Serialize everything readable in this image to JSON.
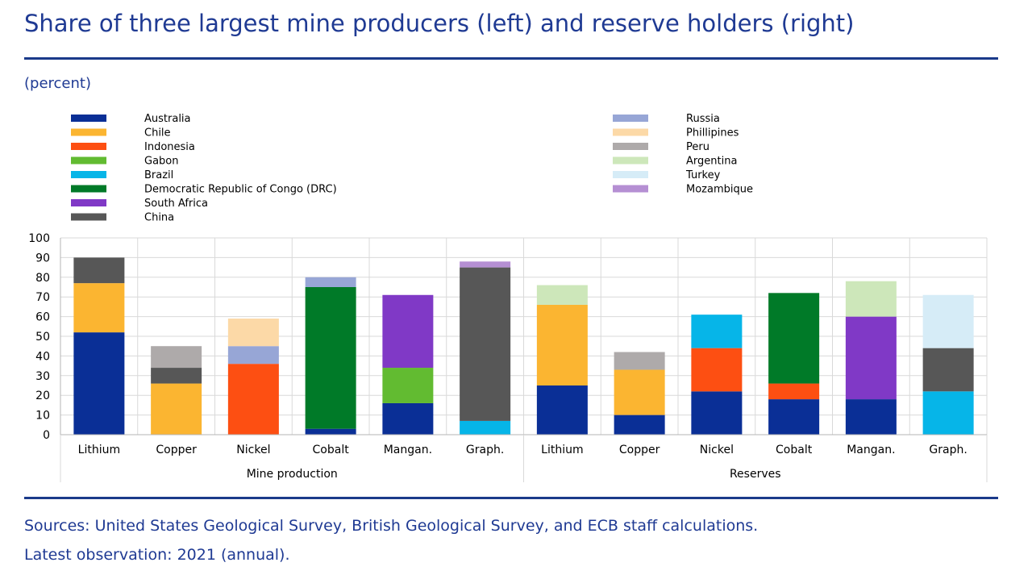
{
  "title": "Share of three largest mine producers (left) and reserve holders (right)",
  "unit_label": "(percent)",
  "notes": {
    "sources": "Sources: United States Geological Survey, British Geological Survey, and ECB staff calculations.",
    "latest": "Latest observation: 2021 (annual)."
  },
  "colors": {
    "Australia": "#0a2f96",
    "Chile": "#fbb531",
    "Indonesia": "#fd4f12",
    "Gabon": "#62bb31",
    "Brazil": "#06b5e8",
    "Democratic Republic of Congo (DRC)": "#007a28",
    "South Africa": "#8039c6",
    "China": "#575757",
    "Russia": "#97a6d6",
    "Phillipines": "#fcd9a7",
    "Peru": "#aeaaaa",
    "Argentina": "#cde7ba",
    "Turkey": "#d6ecf7",
    "Mozambique": "#b58fd3"
  },
  "chart_data": {
    "type": "bar",
    "stacked": true,
    "ylabel": "(percent)",
    "ylim": [
      0,
      100
    ],
    "yticks": [
      0,
      10,
      20,
      30,
      40,
      50,
      60,
      70,
      80,
      90,
      100
    ],
    "grid": true,
    "legend_columns": [
      [
        "Australia",
        "Chile",
        "Indonesia",
        "Gabon",
        "Brazil",
        "Democratic Republic of Congo (DRC)",
        "South Africa",
        "China"
      ],
      [
        "Russia",
        "Phillipines",
        "Peru",
        "Argentina",
        "Turkey",
        "Mozambique"
      ]
    ],
    "groups": [
      {
        "label": "Mine production",
        "categories": [
          "Lithium",
          "Copper",
          "Nickel",
          "Cobalt",
          "Mangan.",
          "Graph."
        ]
      },
      {
        "label": "Reserves",
        "categories": [
          "Lithium",
          "Copper",
          "Nickel",
          "Cobalt",
          "Mangan.",
          "Graph."
        ]
      }
    ],
    "bars": [
      {
        "group": "Mine production",
        "category": "Lithium",
        "segments": [
          {
            "series": "Australia",
            "value": 52
          },
          {
            "series": "Chile",
            "value": 25
          },
          {
            "series": "China",
            "value": 13
          }
        ]
      },
      {
        "group": "Mine production",
        "category": "Copper",
        "segments": [
          {
            "series": "Chile",
            "value": 26
          },
          {
            "series": "China",
            "value": 8
          },
          {
            "series": "Peru",
            "value": 11
          }
        ]
      },
      {
        "group": "Mine production",
        "category": "Nickel",
        "segments": [
          {
            "series": "Indonesia",
            "value": 36
          },
          {
            "series": "Russia",
            "value": 9
          },
          {
            "series": "Phillipines",
            "value": 14
          }
        ]
      },
      {
        "group": "Mine production",
        "category": "Cobalt",
        "segments": [
          {
            "series": "Australia",
            "value": 3
          },
          {
            "series": "Democratic Republic of Congo (DRC)",
            "value": 72
          },
          {
            "series": "Russia",
            "value": 5
          }
        ]
      },
      {
        "group": "Mine production",
        "category": "Mangan.",
        "segments": [
          {
            "series": "Australia",
            "value": 16
          },
          {
            "series": "Gabon",
            "value": 18
          },
          {
            "series": "South Africa",
            "value": 37
          }
        ]
      },
      {
        "group": "Mine production",
        "category": "Graph.",
        "segments": [
          {
            "series": "Brazil",
            "value": 7
          },
          {
            "series": "China",
            "value": 78
          },
          {
            "series": "Mozambique",
            "value": 3
          }
        ]
      },
      {
        "group": "Reserves",
        "category": "Lithium",
        "segments": [
          {
            "series": "Australia",
            "value": 25
          },
          {
            "series": "Chile",
            "value": 41
          },
          {
            "series": "Argentina",
            "value": 10
          }
        ]
      },
      {
        "group": "Reserves",
        "category": "Copper",
        "segments": [
          {
            "series": "Australia",
            "value": 10
          },
          {
            "series": "Chile",
            "value": 23
          },
          {
            "series": "Peru",
            "value": 9
          }
        ]
      },
      {
        "group": "Reserves",
        "category": "Nickel",
        "segments": [
          {
            "series": "Australia",
            "value": 22
          },
          {
            "series": "Indonesia",
            "value": 22
          },
          {
            "series": "Brazil",
            "value": 17
          }
        ]
      },
      {
        "group": "Reserves",
        "category": "Cobalt",
        "segments": [
          {
            "series": "Australia",
            "value": 18
          },
          {
            "series": "Indonesia",
            "value": 8
          },
          {
            "series": "Democratic Republic of Congo (DRC)",
            "value": 46
          }
        ]
      },
      {
        "group": "Reserves",
        "category": "Mangan.",
        "segments": [
          {
            "series": "Australia",
            "value": 18
          },
          {
            "series": "South Africa",
            "value": 42
          },
          {
            "series": "Argentina",
            "value": 18
          }
        ]
      },
      {
        "group": "Reserves",
        "category": "Graph.",
        "segments": [
          {
            "series": "Brazil",
            "value": 22
          },
          {
            "series": "China",
            "value": 22
          },
          {
            "series": "Turkey",
            "value": 27
          }
        ]
      }
    ]
  }
}
